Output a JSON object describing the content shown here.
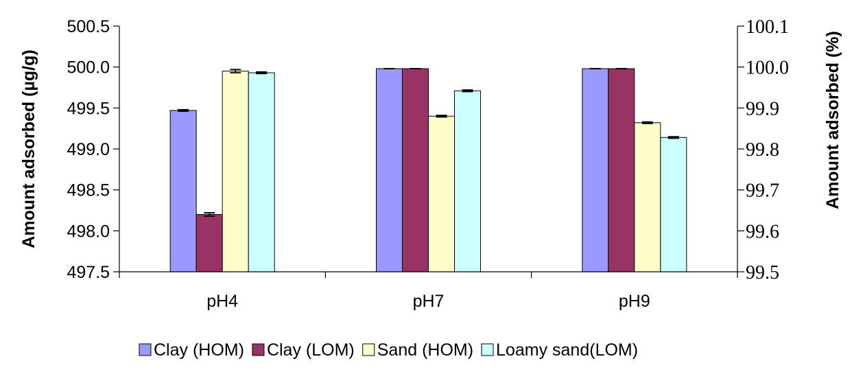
{
  "chart_data": {
    "type": "bar",
    "categories": [
      "pH4",
      "pH7",
      "pH9"
    ],
    "series": [
      {
        "name": "Clay (HOM)",
        "color": "#9999ff",
        "values": [
          499.47,
          499.98,
          499.98
        ],
        "errors": [
          0.01,
          0.0,
          0.0
        ]
      },
      {
        "name": "Clay (LOM)",
        "color": "#993366",
        "values": [
          498.2,
          499.98,
          499.98
        ],
        "errors": [
          0.02,
          0.0,
          0.0
        ]
      },
      {
        "name": "Sand (HOM)",
        "color": "#ffffcc",
        "values": [
          499.95,
          499.4,
          499.32
        ],
        "errors": [
          0.02,
          0.01,
          0.01
        ]
      },
      {
        "name": "Loamy sand(LOM)",
        "color": "#ccffff",
        "values": [
          499.93,
          499.71,
          499.14
        ],
        "errors": [
          0.01,
          0.01,
          0.01
        ]
      }
    ],
    "ylabel": "Amount adsorbed (µg/g)",
    "ylim": [
      497.5,
      500.5
    ],
    "yticks": [
      "497.5",
      "498.0",
      "498.5",
      "499.0",
      "499.5",
      "500.0",
      "500.5"
    ],
    "y2label": "Amount adsorbed (%)",
    "y2lim": [
      99.5,
      100.1
    ],
    "y2ticks": [
      "99.5",
      "99.6",
      "99.7",
      "99.8",
      "99.9",
      "100.0",
      "100.1"
    ],
    "grid": false,
    "legend_position": "bottom"
  }
}
